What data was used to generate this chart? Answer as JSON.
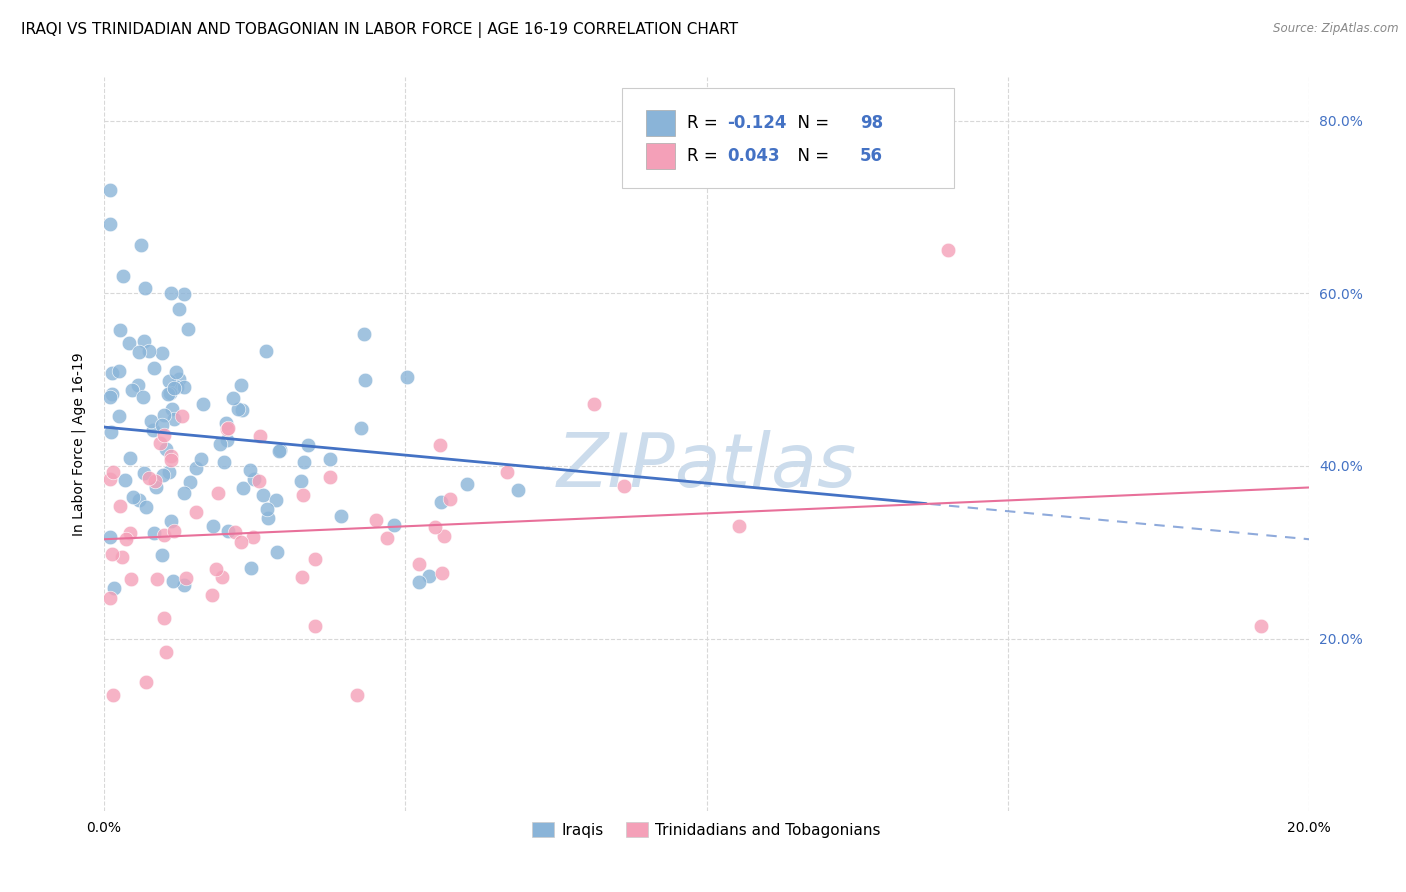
{
  "title": "IRAQI VS TRINIDADIAN AND TOBAGONIAN IN LABOR FORCE | AGE 16-19 CORRELATION CHART",
  "source": "Source: ZipAtlas.com",
  "ylabel": "In Labor Force | Age 16-19",
  "xlim": [
    0.0,
    0.2
  ],
  "ylim": [
    0.0,
    0.85
  ],
  "yticks": [
    0.2,
    0.4,
    0.6,
    0.8
  ],
  "xticks": [
    0.0,
    0.05,
    0.1,
    0.15,
    0.2
  ],
  "xtick_labels": [
    "0.0%",
    "",
    "",
    "",
    "20.0%"
  ],
  "ytick_labels": [
    "20.0%",
    "40.0%",
    "60.0%",
    "80.0%"
  ],
  "iraqi_color": "#8ab4d8",
  "trinidadian_color": "#f4a0b8",
  "iraqi_line_color": "#4472c4",
  "trinidadian_line_color": "#e8709a",
  "R_iraqi": -0.124,
  "N_iraqi": 98,
  "R_trinidadian": 0.043,
  "N_trinidadian": 56,
  "watermark": "ZIPatlas",
  "watermark_color": "#ccdcec",
  "legend_label_iraqi": "Iraqis",
  "legend_label_trinidadian": "Trinidadians and Tobagonians",
  "background_color": "#ffffff",
  "grid_color": "#d8d8d8",
  "title_fontsize": 11,
  "axis_fontsize": 10,
  "tick_fontsize": 10,
  "right_ytick_color": "#4472c4",
  "blue_val_color": "#4472c4"
}
